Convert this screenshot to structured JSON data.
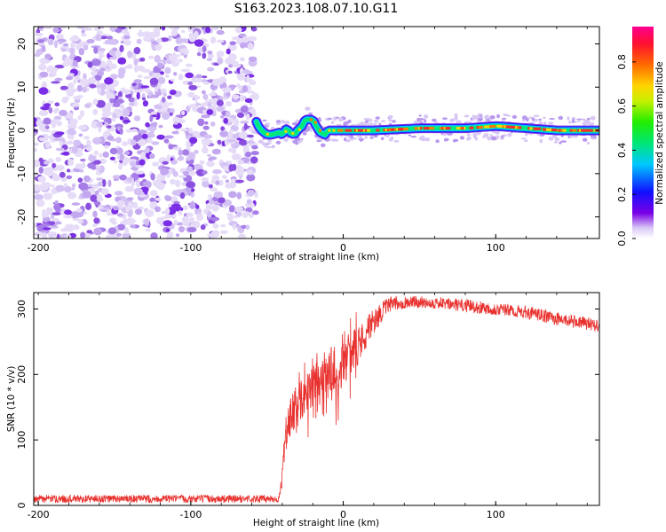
{
  "title": "S163.2023.108.07.10.G11",
  "chart_data": [
    {
      "type": "heatmap",
      "xlabel": "Height of straight line (km)",
      "ylabel": "Frequency (Hz)",
      "xlim": [
        -203,
        168
      ],
      "ylim": [
        -25,
        24
      ],
      "x_ticks": [
        -200,
        -100,
        0,
        100
      ],
      "y_ticks": [
        -20,
        -10,
        0,
        10,
        20
      ],
      "noise_region_x": [
        -203,
        -57
      ],
      "signal_trace": {
        "x": [
          -57,
          -55,
          -52,
          -50,
          -47,
          -45,
          -42,
          -40,
          -37,
          -35,
          -32,
          -30,
          -27,
          -25,
          -22,
          -20,
          -17,
          -15,
          -12,
          -10,
          -5,
          0,
          20,
          50,
          80,
          100,
          120,
          140,
          168
        ],
        "freq": [
          2,
          0.5,
          -0.5,
          -1,
          -1,
          -0.8,
          -0.5,
          -1,
          0.5,
          -0.5,
          -1,
          0,
          1,
          2.5,
          2.5,
          2.5,
          0.5,
          -0.5,
          -1,
          0,
          0,
          0,
          0,
          0.5,
          0.5,
          1,
          0.5,
          0,
          0
        ]
      },
      "colorbar": {
        "label": "Normalized spectral amplitude",
        "range": [
          0,
          0.96
        ],
        "ticks": [
          0.0,
          0.2,
          0.4,
          0.6,
          0.8
        ]
      }
    },
    {
      "type": "line",
      "xlabel": "Height of straight line (km)",
      "ylabel": "SNR (10 * v/v)",
      "xlim": [
        -203,
        168
      ],
      "ylim": [
        0,
        325
      ],
      "x_ticks": [
        -200,
        -100,
        0,
        100
      ],
      "y_ticks": [
        0,
        100,
        200,
        300
      ],
      "series": [
        {
          "color": "#e8312e",
          "envelope": {
            "x": [
              -203,
              -160,
              -120,
              -80,
              -42,
              -40,
              -38,
              -35,
              -30,
              -25,
              -20,
              -15,
              -10,
              -5,
              0,
              5,
              10,
              15,
              20,
              25,
              30,
              40,
              50,
              60,
              80,
              100,
              120,
              140,
              168
            ],
            "low": [
              4,
              4,
              4,
              4,
              4,
              30,
              80,
              100,
              110,
              140,
              150,
              170,
              150,
              150,
              190,
              200,
              215,
              240,
              260,
              280,
              295,
              300,
              302,
              300,
              295,
              290,
              285,
              275,
              265
            ],
            "high": [
              16,
              16,
              16,
              16,
              16,
              60,
              130,
              160,
              190,
              200,
              215,
              230,
              240,
              250,
              255,
              265,
              275,
              290,
              300,
              310,
              318,
              320,
              320,
              318,
              315,
              310,
              305,
              295,
              285
            ]
          }
        }
      ]
    }
  ]
}
